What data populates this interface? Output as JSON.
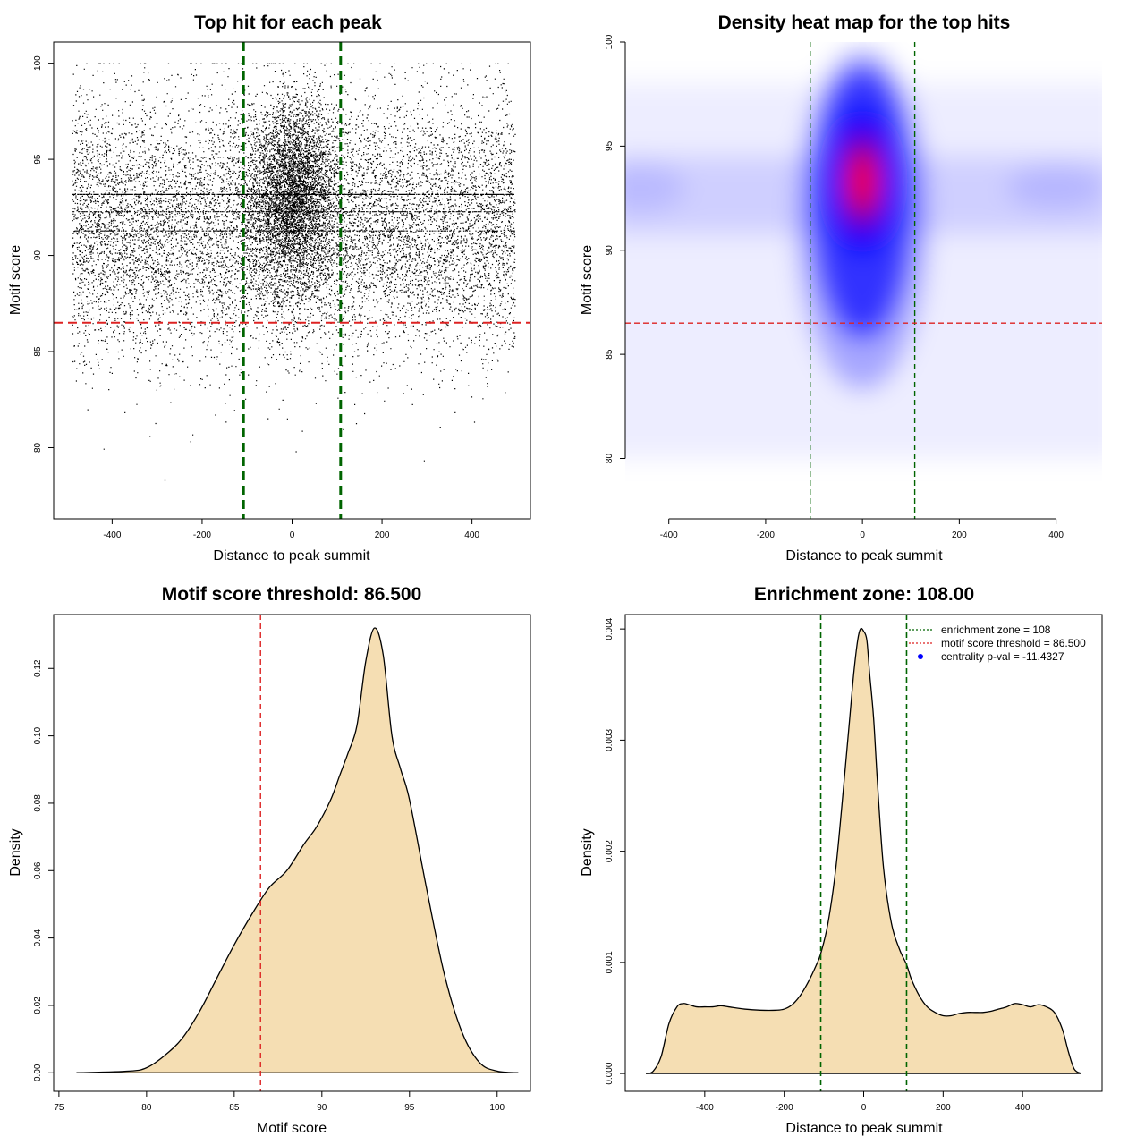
{
  "chart_data": [
    {
      "type": "scatter",
      "title": "Top hit for each peak",
      "xlabel": "Distance to peak summit",
      "ylabel": "Motif score",
      "xlim": [
        -530,
        530
      ],
      "ylim": [
        76.3,
        101.1
      ],
      "xticks": [
        -400,
        -200,
        0,
        200,
        400
      ],
      "yticks": [
        80,
        85,
        90,
        95,
        100
      ],
      "point_color": "#000000",
      "vlines": [
        -108,
        108
      ],
      "vline_color": "#006400",
      "hline": 86.5,
      "hline_color": "#dd2222",
      "points": {
        "n_uniform": 12000,
        "n_central": 4500,
        "x_range": [
          -490,
          495
        ],
        "y_range": [
          77,
          100
        ],
        "score_mean": 91.5,
        "score_sd": 3.4,
        "central_x_sd": 45,
        "score_mode": 93.2
      }
    },
    {
      "type": "heatmap",
      "title": "Density heat map for the top hits",
      "xlabel": "Distance to peak summit",
      "ylabel": "Motif score",
      "xlim": [
        -490,
        495
      ],
      "ylim": [
        77.1,
        100
      ],
      "xticks": [
        -400,
        -200,
        0,
        200,
        400
      ],
      "yticks": [
        80,
        85,
        90,
        95,
        100
      ],
      "colors": [
        "#ffffff",
        "#0000ff",
        "#ff0000"
      ],
      "peak": {
        "x": 0,
        "y": 93.3
      },
      "background_band_y": 92.8,
      "vlines": [
        -108,
        108
      ],
      "vline_color": "#006400",
      "hline": 86.5,
      "hline_color": "#dd2222"
    },
    {
      "type": "area",
      "title": "Motif score threshold: 86.500",
      "xlabel": "Motif score",
      "ylabel": "Density",
      "xlim": [
        74.7,
        101.9
      ],
      "ylim": [
        -0.0055,
        0.136
      ],
      "xticks": [
        75,
        80,
        85,
        90,
        95,
        100
      ],
      "yticks": [
        0.0,
        0.02,
        0.04,
        0.06,
        0.08,
        0.1,
        0.12
      ],
      "ytick_labels": [
        "0.00",
        "0.02",
        "0.04",
        "0.06",
        "0.08",
        "0.10",
        "0.12"
      ],
      "fill": "#f5deb3",
      "x": [
        76,
        79,
        80,
        81,
        82,
        83,
        84,
        85,
        86,
        87,
        88,
        89,
        89.7,
        90.5,
        91,
        91.5,
        92,
        92.5,
        93,
        93.5,
        94,
        94.5,
        95,
        96,
        97,
        98,
        99,
        100,
        101.2
      ],
      "y": [
        0,
        0.0005,
        0.0015,
        0.005,
        0.01,
        0.018,
        0.028,
        0.038,
        0.047,
        0.055,
        0.06,
        0.068,
        0.073,
        0.081,
        0.088,
        0.095,
        0.103,
        0.122,
        0.132,
        0.124,
        0.1,
        0.09,
        0.081,
        0.054,
        0.029,
        0.012,
        0.003,
        0.0005,
        0
      ],
      "vline": 86.5,
      "vline_color": "#dd2222"
    },
    {
      "type": "area",
      "title": "Enrichment zone: 108.00",
      "xlabel": "Distance to peak summit",
      "ylabel": "Density",
      "xlim": [
        -600,
        600
      ],
      "ylim": [
        -0.00016,
        0.00413
      ],
      "xticks": [
        -400,
        -200,
        0,
        200,
        400
      ],
      "yticks": [
        0.0,
        0.001,
        0.002,
        0.003,
        0.004
      ],
      "ytick_labels": [
        "0.000",
        "0.001",
        "0.002",
        "0.003",
        "0.004"
      ],
      "fill": "#f5deb3",
      "x": [
        -548,
        -530,
        -510,
        -490,
        -470,
        -455,
        -440,
        -420,
        -400,
        -380,
        -360,
        -340,
        -300,
        -260,
        -220,
        -200,
        -180,
        -160,
        -140,
        -120,
        -108,
        -90,
        -70,
        -50,
        -35,
        -25,
        -15,
        -8,
        0,
        8,
        15,
        25,
        35,
        50,
        70,
        90,
        108,
        120,
        140,
        160,
        180,
        200,
        220,
        240,
        260,
        280,
        300,
        320,
        340,
        360,
        380,
        400,
        420,
        440,
        460,
        480,
        500,
        515,
        530,
        548
      ],
      "y": [
        0,
        2e-05,
        0.00015,
        0.00045,
        0.0006,
        0.00063,
        0.00062,
        0.0006,
        0.0006,
        0.0006,
        0.00061,
        0.0006,
        0.00058,
        0.00057,
        0.00057,
        0.00058,
        0.00062,
        0.0007,
        0.00082,
        0.00097,
        0.00108,
        0.00135,
        0.00185,
        0.0026,
        0.0032,
        0.0036,
        0.0039,
        0.004,
        0.00398,
        0.0039,
        0.0036,
        0.0032,
        0.0026,
        0.00185,
        0.00135,
        0.00112,
        0.00098,
        0.00085,
        0.0007,
        0.0006,
        0.00055,
        0.00052,
        0.00052,
        0.00054,
        0.00055,
        0.00055,
        0.00055,
        0.00056,
        0.00058,
        0.0006,
        0.00063,
        0.00062,
        0.0006,
        0.00062,
        0.0006,
        0.00055,
        0.0004,
        0.0002,
        4e-05,
        0
      ],
      "vlines": [
        -108,
        108
      ],
      "vline_color": "#006400",
      "legend": {
        "position": "top-right",
        "entries": [
          {
            "label": "enrichment zone = 108",
            "color": "#006400",
            "style": "dotted-line"
          },
          {
            "label": "motif score threshold = 86.500",
            "color": "#dd2222",
            "style": "dotted-line"
          },
          {
            "label": "centrality p-val = -11.4327",
            "color": "#0000ff",
            "style": "point"
          }
        ]
      }
    }
  ]
}
